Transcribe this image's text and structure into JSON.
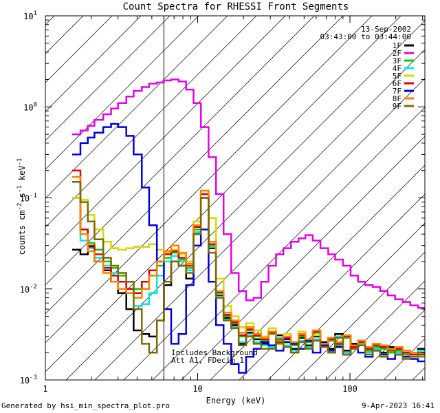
{
  "chart_data": {
    "type": "line",
    "title": "Count Spectra for RHESSI Front Segments",
    "xlabel": "Energy (keV)",
    "ylabel": "counts cm-2 s-1 keV-1",
    "xscale": "log",
    "yscale": "log",
    "xlim": [
      1.2,
      300
    ],
    "ylim": [
      0.001,
      10
    ],
    "x_ticks": [
      {
        "value": 1,
        "label": "1"
      },
      {
        "value": 10,
        "label": "10"
      },
      {
        "value": 100,
        "label": "100"
      }
    ],
    "y_ticks": [
      {
        "value": 0.001,
        "base": "10",
        "exp": "-3"
      },
      {
        "value": 0.01,
        "base": "10",
        "exp": "-2"
      },
      {
        "value": 0.1,
        "base": "10",
        "exp": "-1"
      },
      {
        "value": 1,
        "base": "10",
        "exp": "0"
      },
      {
        "value": 10,
        "base": "10",
        "exp": "1"
      }
    ],
    "date": "13-Sep-2002",
    "time_range": "03:43:00 to 03:44:00",
    "shaded_region": {
      "x_from": 1.2,
      "x_to": 6.0
    },
    "annotations": [
      "Includes Background",
      "Att A1, FDecim 1"
    ],
    "series": [
      {
        "name": "1F",
        "color": "#000000",
        "x": [
          1.5,
          1.7,
          1.9,
          2.1,
          2.4,
          2.7,
          3.0,
          3.4,
          3.8,
          4.3,
          4.8,
          5.4,
          6.0,
          6.7,
          7.5,
          8.4,
          9.4,
          10.5,
          11.8,
          13.2,
          14.8,
          16.6,
          18.6,
          20.8,
          23.3,
          26.1,
          29.2,
          32.7,
          36.6,
          41,
          46,
          51,
          57,
          64,
          72,
          80,
          90,
          101,
          113,
          126,
          141,
          158,
          177,
          198,
          222,
          249,
          280
        ],
        "y": [
          0.027,
          0.024,
          0.029,
          0.02,
          0.016,
          0.012,
          0.009,
          0.006,
          0.0035,
          0.0032,
          0.003,
          0.0045,
          0.011,
          0.02,
          0.018,
          0.013,
          0.04,
          0.11,
          0.028,
          0.0085,
          0.0048,
          0.004,
          0.0025,
          0.0033,
          0.0028,
          0.0025,
          0.0024,
          0.0031,
          0.0026,
          0.0022,
          0.0029,
          0.0024,
          0.003,
          0.0026,
          0.0022,
          0.0032,
          0.0021,
          0.0025,
          0.0027,
          0.0021,
          0.0024,
          0.002,
          0.0023,
          0.0021,
          0.0019,
          0.002,
          0.0022
        ]
      },
      {
        "name": "2F",
        "color": "#e600e6",
        "x": [
          1.5,
          1.7,
          1.9,
          2.1,
          2.4,
          2.7,
          3.0,
          3.4,
          3.8,
          4.3,
          4.8,
          5.4,
          6.0,
          6.7,
          7.5,
          8.4,
          9.4,
          10.5,
          11.8,
          13.2,
          14.8,
          16.6,
          18.6,
          20.8,
          23.3,
          26.1,
          29.2,
          32.7,
          36.6,
          41,
          46,
          51,
          57,
          64,
          72,
          80,
          90,
          101,
          113,
          126,
          141,
          158,
          177,
          198,
          222,
          249,
          280
        ],
        "y": [
          0.5,
          0.55,
          0.62,
          0.72,
          0.83,
          0.96,
          1.1,
          1.3,
          1.5,
          1.65,
          1.8,
          1.85,
          1.95,
          2.0,
          1.9,
          1.55,
          1.1,
          0.6,
          0.28,
          0.11,
          0.04,
          0.015,
          0.0095,
          0.0075,
          0.008,
          0.012,
          0.018,
          0.024,
          0.028,
          0.033,
          0.036,
          0.039,
          0.034,
          0.028,
          0.024,
          0.021,
          0.018,
          0.014,
          0.012,
          0.011,
          0.0105,
          0.0095,
          0.0085,
          0.0077,
          0.0072,
          0.0066,
          0.0062
        ]
      },
      {
        "name": "3F",
        "color": "#00d000",
        "x": [
          1.5,
          1.7,
          1.9,
          2.1,
          2.4,
          2.7,
          3.0,
          3.4,
          3.8,
          4.3,
          4.8,
          5.4,
          6.0,
          6.7,
          7.5,
          8.4,
          9.4,
          10.5,
          11.8,
          13.2,
          14.8,
          16.6,
          18.6,
          20.8,
          23.3,
          26.1,
          29.2,
          32.7,
          36.6,
          41,
          46,
          51,
          57,
          64,
          72,
          80,
          90,
          101,
          113,
          126,
          141,
          158,
          177,
          198,
          222,
          249,
          280
        ],
        "y": [
          0.1,
          0.045,
          0.032,
          0.027,
          0.02,
          0.017,
          0.014,
          0.012,
          0.01,
          0.012,
          0.014,
          0.018,
          0.022,
          0.025,
          0.021,
          0.017,
          0.045,
          0.1,
          0.03,
          0.009,
          0.005,
          0.0042,
          0.003,
          0.0035,
          0.003,
          0.0027,
          0.0032,
          0.0025,
          0.0028,
          0.0024,
          0.003,
          0.0026,
          0.0033,
          0.0023,
          0.0027,
          0.0024,
          0.0029,
          0.0022,
          0.0025,
          0.0021,
          0.0023,
          0.0022,
          0.002,
          0.0021,
          0.0019,
          0.0018,
          0.0018
        ]
      },
      {
        "name": "4F",
        "color": "#00e8e8",
        "x": [
          1.5,
          1.7,
          1.9,
          2.1,
          2.4,
          2.7,
          3.0,
          3.4,
          3.8,
          4.3,
          4.8,
          5.4,
          6.0,
          6.7,
          7.5,
          8.4,
          9.4,
          10.5,
          11.8,
          13.2,
          14.8,
          16.6,
          18.6,
          20.8,
          23.3,
          26.1,
          29.2,
          32.7,
          36.6,
          41,
          46,
          51,
          57,
          64,
          72,
          80,
          90,
          101,
          113,
          126,
          141,
          158,
          177,
          198,
          222,
          249,
          280
        ],
        "y": [
          0.15,
          0.034,
          0.028,
          0.022,
          0.018,
          0.015,
          0.012,
          0.009,
          0.0065,
          0.0068,
          0.009,
          0.014,
          0.02,
          0.023,
          0.02,
          0.016,
          0.042,
          0.1,
          0.029,
          0.0087,
          0.0046,
          0.0038,
          0.0026,
          0.0031,
          0.0026,
          0.0024,
          0.0023,
          0.0029,
          0.0024,
          0.0021,
          0.0027,
          0.0023,
          0.0028,
          0.0024,
          0.0021,
          0.003,
          0.002,
          0.0023,
          0.0025,
          0.002,
          0.0022,
          0.0019,
          0.0022,
          0.002,
          0.0018,
          0.0019,
          0.0021
        ]
      },
      {
        "name": "5F",
        "color": "#d8d800",
        "x": [
          1.5,
          1.7,
          1.9,
          2.1,
          2.4,
          2.7,
          3.0,
          3.4,
          3.8,
          4.3,
          4.8,
          5.4,
          6.0,
          6.7,
          7.5,
          8.4,
          9.4,
          10.5,
          11.8,
          13.2,
          14.8,
          16.6,
          18.6,
          20.8,
          23.3,
          26.1,
          29.2,
          32.7,
          36.6,
          41,
          46,
          51,
          57,
          64,
          72,
          80,
          90,
          101,
          113,
          126,
          141,
          158,
          177,
          198,
          222,
          249,
          280
        ],
        "y": [
          0.1,
          0.095,
          0.065,
          0.045,
          0.033,
          0.028,
          0.027,
          0.028,
          0.029,
          0.029,
          0.031,
          0.027,
          0.025,
          0.027,
          0.024,
          0.02,
          0.055,
          0.12,
          0.06,
          0.013,
          0.0065,
          0.005,
          0.0038,
          0.0042,
          0.0035,
          0.003,
          0.0037,
          0.0028,
          0.0032,
          0.0026,
          0.0034,
          0.0028,
          0.0031,
          0.0025,
          0.0029,
          0.0026,
          0.003,
          0.0023,
          0.0026,
          0.0022,
          0.0024,
          0.0023,
          0.0021,
          0.0022,
          0.002,
          0.0019,
          0.0019
        ]
      },
      {
        "name": "6F",
        "color": "#e00000",
        "x": [
          1.5,
          1.7,
          1.9,
          2.1,
          2.4,
          2.7,
          3.0,
          3.4,
          3.8,
          4.3,
          4.8,
          5.4,
          6.0,
          6.7,
          7.5,
          8.4,
          9.4,
          10.5,
          11.8,
          13.2,
          14.8,
          16.6,
          18.6,
          20.8,
          23.3,
          26.1,
          29.2,
          32.7,
          36.6,
          41,
          46,
          51,
          57,
          64,
          72,
          80,
          90,
          101,
          113,
          126,
          141,
          158,
          177,
          198,
          222,
          249,
          280
        ],
        "y": [
          0.2,
          0.045,
          0.03,
          0.024,
          0.017,
          0.014,
          0.012,
          0.01,
          0.009,
          0.012,
          0.016,
          0.02,
          0.024,
          0.026,
          0.022,
          0.018,
          0.048,
          0.11,
          0.031,
          0.0092,
          0.0052,
          0.0043,
          0.0031,
          0.0036,
          0.0031,
          0.0028,
          0.0033,
          0.0026,
          0.0029,
          0.0025,
          0.0031,
          0.0027,
          0.0034,
          0.0024,
          0.0028,
          0.0025,
          0.003,
          0.0023,
          0.0026,
          0.0022,
          0.0024,
          0.0023,
          0.0021,
          0.0022,
          0.002,
          0.0019,
          0.0019
        ]
      },
      {
        "name": "7F",
        "color": "#0000d8",
        "x": [
          1.5,
          1.7,
          1.9,
          2.1,
          2.4,
          2.7,
          3.0,
          3.4,
          3.8,
          4.3,
          4.8,
          5.4,
          6.0,
          6.7,
          7.5,
          8.4,
          9.4,
          10.5,
          11.8,
          13.2,
          14.8,
          16.6,
          18.6,
          20.8,
          23.3,
          26.1,
          29.2,
          32.7,
          36.6,
          41,
          46,
          51,
          57,
          64,
          72,
          80,
          90,
          101,
          113,
          126,
          141,
          158,
          177,
          198,
          222,
          249,
          280
        ],
        "y": [
          0.3,
          0.4,
          0.46,
          0.52,
          0.6,
          0.65,
          0.6,
          0.48,
          0.3,
          0.13,
          0.05,
          0.02,
          0.006,
          0.0025,
          0.0032,
          0.011,
          0.03,
          0.045,
          0.012,
          0.004,
          0.0025,
          0.0015,
          0.0012,
          0.0018,
          0.0022,
          0.0026,
          0.0024,
          0.0021,
          0.0028,
          0.0025,
          0.0022,
          0.0027,
          0.002,
          0.0024,
          0.0021,
          0.0023,
          0.0019,
          0.0022,
          0.002,
          0.0018,
          0.0021,
          0.0019,
          0.0017,
          0.0019,
          0.0018,
          0.0017,
          0.0016
        ]
      },
      {
        "name": "8F",
        "color": "#ff8000",
        "x": [
          1.5,
          1.7,
          1.9,
          2.1,
          2.4,
          2.7,
          3.0,
          3.4,
          3.8,
          4.3,
          4.8,
          5.4,
          6.0,
          6.7,
          7.5,
          8.4,
          9.4,
          10.5,
          11.8,
          13.2,
          14.8,
          16.6,
          18.6,
          20.8,
          23.3,
          26.1,
          29.2,
          32.7,
          36.6,
          41,
          46,
          51,
          57,
          64,
          72,
          80,
          90,
          101,
          113,
          126,
          141,
          158,
          177,
          198,
          222,
          249,
          280
        ],
        "y": [
          0.17,
          0.04,
          0.026,
          0.02,
          0.015,
          0.012,
          0.01,
          0.009,
          0.008,
          0.01,
          0.014,
          0.02,
          0.026,
          0.03,
          0.025,
          0.019,
          0.05,
          0.12,
          0.033,
          0.0095,
          0.0055,
          0.0045,
          0.0033,
          0.0038,
          0.0032,
          0.0029,
          0.0034,
          0.0027,
          0.003,
          0.0026,
          0.0032,
          0.0028,
          0.0035,
          0.0025,
          0.0029,
          0.0026,
          0.0031,
          0.0024,
          0.0027,
          0.0023,
          0.0025,
          0.0024,
          0.0022,
          0.0023,
          0.0021,
          0.002,
          0.002
        ]
      },
      {
        "name": "9F",
        "color": "#7a6a00",
        "x": [
          1.5,
          1.7,
          1.9,
          2.1,
          2.4,
          2.7,
          3.0,
          3.4,
          3.8,
          4.3,
          4.8,
          5.4,
          6.0,
          6.7,
          7.5,
          8.4,
          9.4,
          10.5,
          11.8,
          13.2,
          14.8,
          16.6,
          18.6,
          20.8,
          23.3,
          26.1,
          29.2,
          32.7,
          36.6,
          41,
          46,
          51,
          57,
          64,
          72,
          80,
          90,
          101,
          113,
          126,
          141,
          158,
          177,
          198,
          222,
          249,
          280
        ],
        "y": [
          0.15,
          0.09,
          0.055,
          0.035,
          0.022,
          0.018,
          0.015,
          0.012,
          0.006,
          0.0025,
          0.002,
          0.0045,
          0.012,
          0.02,
          0.018,
          0.015,
          0.04,
          0.1,
          0.025,
          0.008,
          0.0045,
          0.0037,
          0.0024,
          0.003,
          0.0025,
          0.0022,
          0.0022,
          0.0028,
          0.0023,
          0.002,
          0.0026,
          0.0022,
          0.0027,
          0.0023,
          0.002,
          0.0029,
          0.0019,
          0.0022,
          0.0024,
          0.0019,
          0.0021,
          0.0018,
          0.0021,
          0.0019,
          0.0017,
          0.0018,
          0.002
        ]
      }
    ]
  },
  "footer": {
    "left": "Generated by hsi_min_spectra_plot.pro",
    "right": "9-Apr-2023 16:41"
  }
}
